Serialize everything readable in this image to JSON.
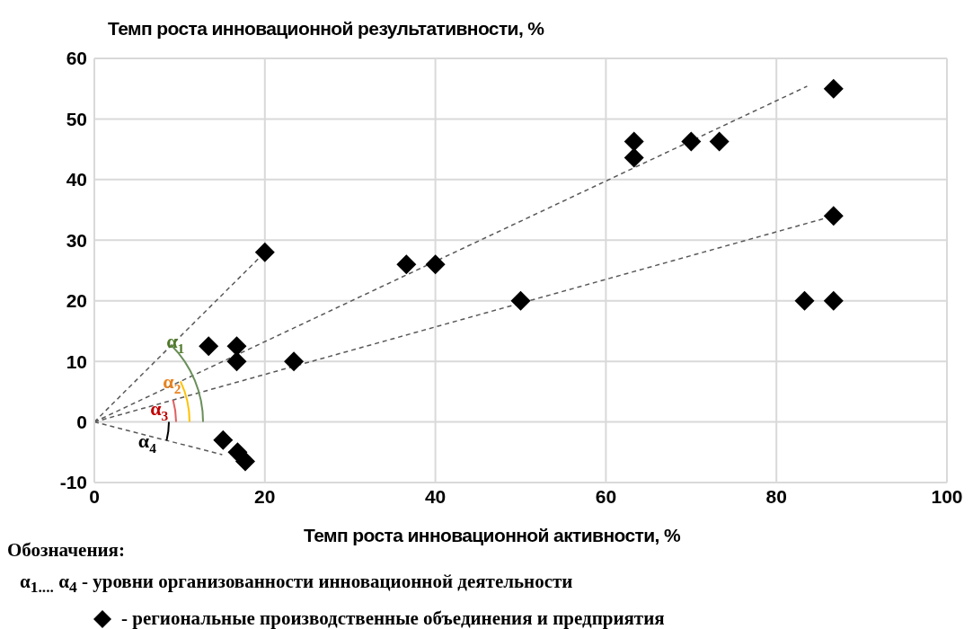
{
  "chart_data": {
    "type": "scatter",
    "title": "Темп роста инновационной результативности, %",
    "xlabel": "Темп роста инновационной активности, %",
    "legend_title": "Обозначения:",
    "xlim": [
      0,
      100
    ],
    "xticks": [
      0,
      20,
      40,
      60,
      80,
      100
    ],
    "ylim": [
      -10,
      60
    ],
    "yticks": [
      -10,
      0,
      10,
      20,
      30,
      40,
      50,
      60
    ],
    "grid": true,
    "legend": "bottom",
    "marker": "diamond",
    "series": [
      {
        "name": "- региональные производственные объединения и предприятия",
        "color": "#000000",
        "x": [
          20,
          13.4,
          16.7,
          16.7,
          23.4,
          15.1,
          16.8,
          17.7,
          36.6,
          40,
          50,
          63.3,
          63.3,
          70,
          73.3,
          86.7,
          86.7,
          83.3,
          86.7
        ],
        "values": [
          28,
          12.5,
          12.5,
          10,
          10,
          -3,
          -5,
          -6.5,
          26,
          26,
          20,
          46.3,
          43.6,
          46.3,
          46.3,
          55,
          34,
          20,
          20
        ]
      },
      {
        "type": "line",
        "color": "#595959",
        "line_style": "dashed",
        "marker": "none",
        "x": [
          0,
          20
        ],
        "values": [
          0,
          28
        ]
      },
      {
        "type": "line",
        "color": "#595959",
        "line_style": "dashed",
        "marker": "none",
        "x": [
          0,
          83.6
        ],
        "values": [
          0,
          55.4
        ]
      },
      {
        "type": "line",
        "color": "#595959",
        "line_style": "dashed",
        "marker": "none",
        "x": [
          0,
          86.7
        ],
        "values": [
          0,
          34
        ]
      },
      {
        "type": "line",
        "color": "#595959",
        "line_style": "dashed",
        "marker": "none",
        "x": [
          0,
          15
        ],
        "values": [
          0,
          -5.4
        ]
      }
    ],
    "annotations": [
      {
        "text": "α$_{1}$",
        "x": 9.5,
        "y": 13.4
      },
      {
        "text": "α$_{2}$",
        "x": 9.1,
        "y": 6.8
      },
      {
        "text": "α$_{3}$",
        "x": 7.6,
        "y": 2.3
      },
      {
        "text": "α$_{4}$",
        "x": 6.2,
        "y": -3.1
      },
      "α$_{1....}$ α$_{4}$  - уровни организованности инновационной деятельности"
    ]
  }
}
